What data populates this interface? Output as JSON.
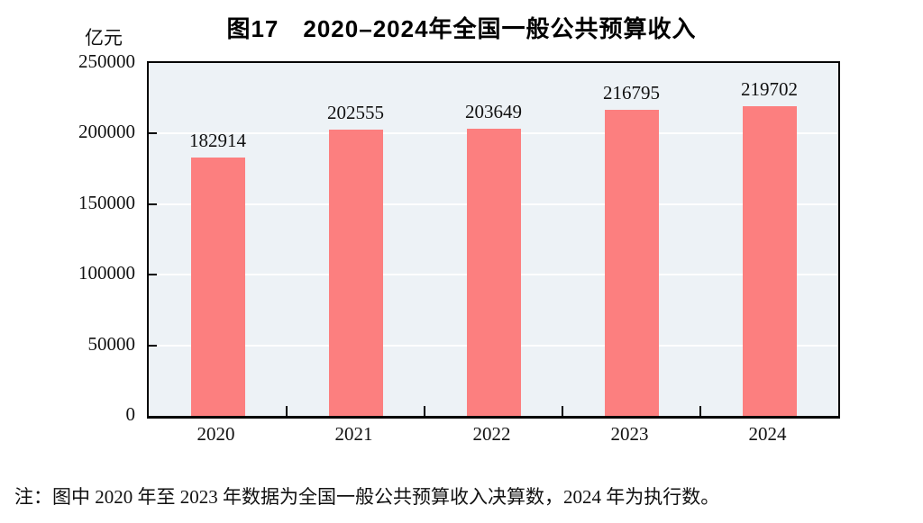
{
  "chart_data": {
    "type": "bar",
    "title": "图17　2020–2024年全国一般公共预算收入",
    "unit": "亿元",
    "categories": [
      "2020",
      "2021",
      "2022",
      "2023",
      "2024"
    ],
    "values": [
      182914,
      202555,
      203649,
      216795,
      219702
    ],
    "value_labels": [
      "182914",
      "202555",
      "203649",
      "216795",
      "219702"
    ],
    "ylim": [
      0,
      250000
    ],
    "yticks": [
      0,
      50000,
      100000,
      150000,
      200000,
      250000
    ],
    "grid": true,
    "legend": false,
    "bar_color": "#fc7f7f",
    "plot_background": "#edf2f6",
    "gridline_color": "#ffffff",
    "axis_color": "#000000"
  },
  "note": {
    "text": "注：图中 2020 年至 2023 年数据为全国一般公共预算收入决算数，2024 年为执行数。"
  }
}
